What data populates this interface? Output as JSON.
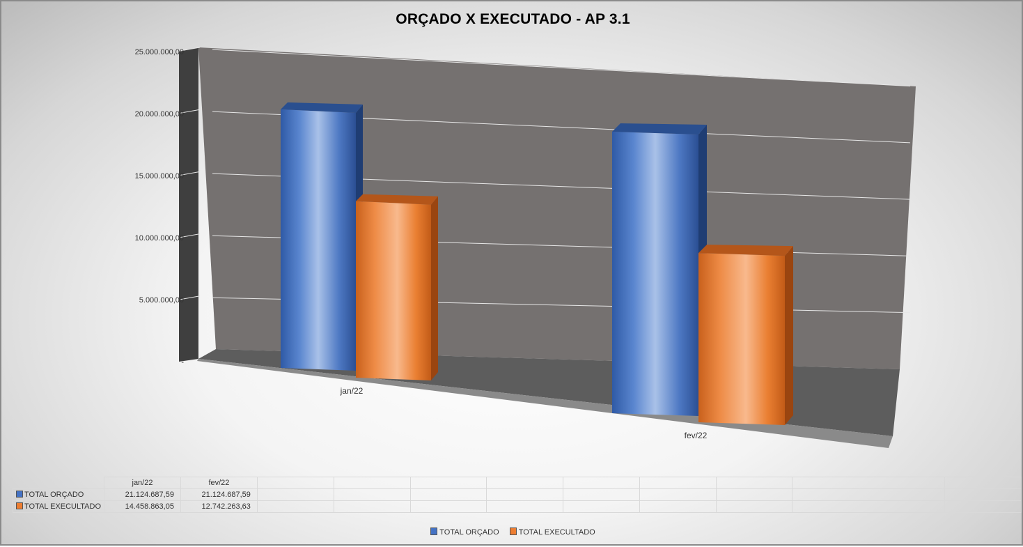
{
  "chart_data": {
    "type": "bar",
    "title": "ORÇADO X EXECUTADO - AP 3.1",
    "categories": [
      "jan/22",
      "fev/22"
    ],
    "series": [
      {
        "name": "TOTAL ORÇADO",
        "values": [
          21124687.59,
          21124687.59
        ],
        "value_labels": [
          "21.124.687,59",
          "21.124.687,59"
        ],
        "color": "#4472C4"
      },
      {
        "name": "TOTAL EXECULTADO",
        "values": [
          14458863.05,
          12742263.63
        ],
        "value_labels": [
          "14.458.863,05",
          "12.742.263,63"
        ],
        "color": "#ED7D31"
      }
    ],
    "ylim": [
      0,
      25000000
    ],
    "y_ticks": [
      0,
      5000000,
      10000000,
      15000000,
      20000000,
      25000000
    ],
    "y_tick_labels": [
      "-",
      "5.000.000,00",
      "10.000.000,00",
      "15.000.000,00",
      "20.000.000,00",
      "25.000.000,00"
    ],
    "grid": true,
    "style": "3d-cylinder",
    "legend_position": "bottom",
    "data_table": true
  },
  "legend": {
    "orcado": "TOTAL ORÇADO",
    "executado": "TOTAL EXECULTADO"
  },
  "colors": {
    "orcado": "#4472C4",
    "executado": "#ED7D31",
    "wall": "#757170",
    "floor": "#5f5f5f"
  }
}
